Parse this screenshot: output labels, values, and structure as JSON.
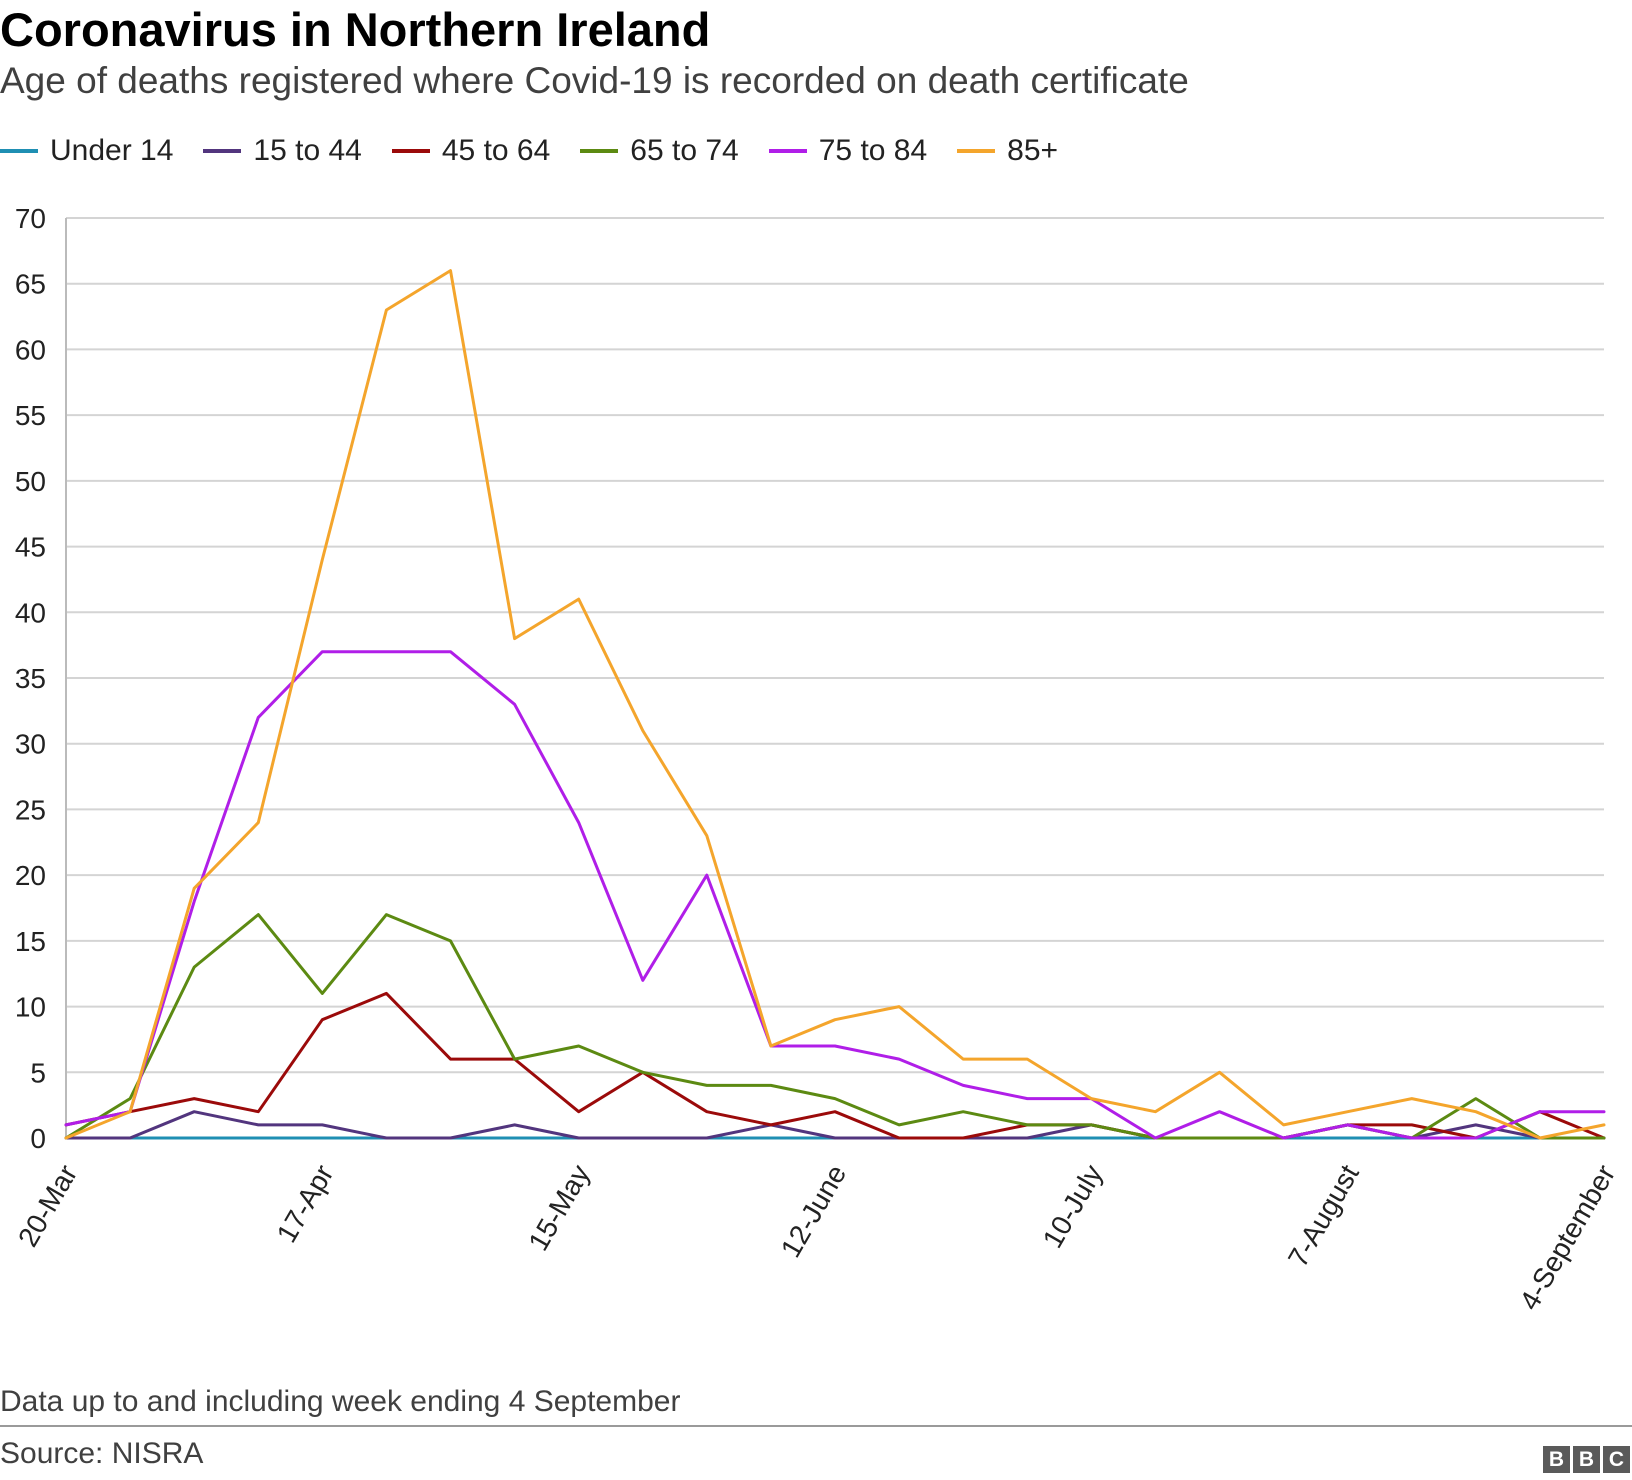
{
  "header": {
    "title": "Coronavirus in Northern Ireland",
    "subtitle": "Age of deaths registered where Covid-19 is recorded on death certificate"
  },
  "footer": {
    "note": "Data up to and including week ending 4 September",
    "source": "Source: NISRA",
    "logo_letters": [
      "B",
      "B",
      "C"
    ]
  },
  "chart_data": {
    "type": "line",
    "title": "Coronavirus in Northern Ireland",
    "subtitle": "Age of deaths registered where Covid-19 is recorded on death certificate",
    "xlabel": "",
    "ylabel": "",
    "ylim": [
      0,
      70
    ],
    "yticks": [
      0,
      5,
      10,
      15,
      20,
      25,
      30,
      35,
      40,
      45,
      50,
      55,
      60,
      65,
      70
    ],
    "grid": true,
    "legend_position": "top-left",
    "week_count": 25,
    "xtick_labels": [
      {
        "index": 0,
        "label": "20-Mar"
      },
      {
        "index": 4,
        "label": "17-Apr"
      },
      {
        "index": 8,
        "label": "15-May"
      },
      {
        "index": 12,
        "label": "12-June"
      },
      {
        "index": 16,
        "label": "10-July"
      },
      {
        "index": 20,
        "label": "7-August"
      },
      {
        "index": 24,
        "label": "4-September"
      }
    ],
    "series": [
      {
        "name": "Under 14",
        "color": "#1f8fb3",
        "values": [
          0,
          0,
          0,
          0,
          0,
          0,
          0,
          0,
          0,
          0,
          0,
          0,
          0,
          0,
          0,
          0,
          0,
          0,
          0,
          0,
          0,
          0,
          0,
          0,
          0
        ]
      },
      {
        "name": "15 to 44",
        "color": "#52357e",
        "values": [
          0,
          0,
          2,
          1,
          1,
          0,
          0,
          1,
          0,
          0,
          0,
          1,
          0,
          0,
          0,
          0,
          1,
          0,
          0,
          0,
          1,
          0,
          1,
          0,
          0
        ]
      },
      {
        "name": "45 to 64",
        "color": "#9b0a0a",
        "values": [
          1,
          2,
          3,
          2,
          9,
          11,
          6,
          6,
          2,
          5,
          2,
          1,
          2,
          0,
          0,
          1,
          1,
          0,
          0,
          0,
          1,
          1,
          0,
          2,
          0
        ]
      },
      {
        "name": "65 to 74",
        "color": "#5c8a12",
        "values": [
          0,
          3,
          13,
          17,
          11,
          17,
          15,
          6,
          7,
          5,
          4,
          4,
          3,
          1,
          2,
          1,
          1,
          0,
          0,
          0,
          1,
          0,
          3,
          0,
          0
        ]
      },
      {
        "name": "75 to 84",
        "color": "#b01ee8",
        "values": [
          1,
          2,
          18,
          32,
          37,
          37,
          37,
          33,
          24,
          12,
          20,
          7,
          7,
          6,
          4,
          3,
          3,
          0,
          2,
          0,
          1,
          0,
          0,
          2,
          2
        ]
      },
      {
        "name": "85+",
        "color": "#f4a52c",
        "values": [
          0,
          2,
          19,
          24,
          44,
          63,
          66,
          38,
          41,
          31,
          23,
          7,
          9,
          10,
          6,
          6,
          3,
          2,
          5,
          1,
          2,
          3,
          2,
          0,
          1
        ]
      }
    ]
  }
}
